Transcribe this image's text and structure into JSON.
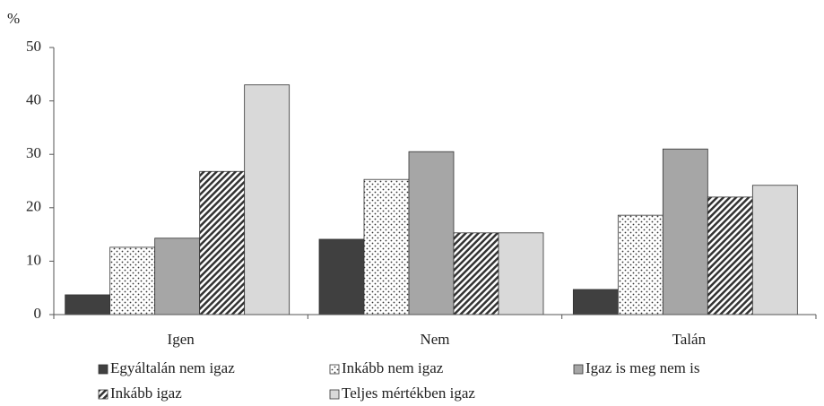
{
  "chart_data": {
    "type": "bar",
    "ylabel": "%",
    "categories": [
      "Igen",
      "Nem",
      "Talán"
    ],
    "series": [
      {
        "name": "Egyáltalán nem igaz",
        "color": "#404040",
        "values": [
          3.7,
          14.1,
          4.7
        ]
      },
      {
        "name": "Inkább nem igaz",
        "color": "#ffffff",
        "pattern": "dots",
        "values": [
          12.6,
          25.3,
          18.6
        ]
      },
      {
        "name": "Igaz is meg nem is",
        "color": "#a6a6a6",
        "values": [
          14.3,
          30.5,
          31.0
        ]
      },
      {
        "name": "Inkább igaz",
        "color": "#ffffff",
        "pattern": "hatch",
        "values": [
          26.8,
          15.3,
          22.0
        ]
      },
      {
        "name": "Teljes mértékben igaz",
        "color": "#d9d9d9",
        "values": [
          43.0,
          15.3,
          24.2
        ]
      }
    ],
    "ylim": [
      0,
      50
    ],
    "yticks": [
      0,
      10,
      20,
      30,
      40,
      50
    ],
    "grid": false
  }
}
